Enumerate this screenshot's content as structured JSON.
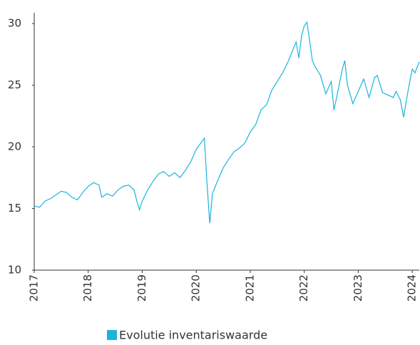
{
  "chart_data": {
    "type": "line",
    "x": [
      2017.0,
      2017.1,
      2017.2,
      2017.3,
      2017.4,
      2017.5,
      2017.6,
      2017.7,
      2017.8,
      2017.9,
      2018.0,
      2018.1,
      2018.2,
      2018.25,
      2018.35,
      2018.45,
      2018.55,
      2018.65,
      2018.75,
      2018.85,
      2018.9,
      2018.95,
      2019.0,
      2019.1,
      2019.2,
      2019.3,
      2019.4,
      2019.5,
      2019.6,
      2019.7,
      2019.8,
      2019.9,
      2020.0,
      2020.1,
      2020.15,
      2020.2,
      2020.25,
      2020.3,
      2020.4,
      2020.5,
      2020.6,
      2020.7,
      2020.8,
      2020.9,
      2021.0,
      2021.1,
      2021.2,
      2021.3,
      2021.4,
      2021.5,
      2021.6,
      2021.7,
      2021.8,
      2021.85,
      2021.9,
      2021.95,
      2022.0,
      2022.05,
      2022.1,
      2022.15,
      2022.2,
      2022.3,
      2022.4,
      2022.5,
      2022.55,
      2022.6,
      2022.7,
      2022.75,
      2022.8,
      2022.9,
      2023.0,
      2023.1,
      2023.2,
      2023.3,
      2023.35,
      2023.45,
      2023.55,
      2023.65,
      2023.7,
      2023.78,
      2023.84,
      2023.9,
      2023.95,
      2024.0,
      2024.05,
      2024.13
    ],
    "series": [
      {
        "name": "Evolutie inventariswaarde",
        "color": "#1ab4dc",
        "values": [
          15.2,
          15.1,
          15.6,
          15.8,
          16.1,
          16.4,
          16.3,
          15.9,
          15.7,
          16.3,
          16.8,
          17.1,
          16.9,
          15.9,
          16.2,
          16.0,
          16.5,
          16.8,
          16.9,
          16.5,
          15.6,
          14.9,
          15.6,
          16.5,
          17.2,
          17.8,
          18.0,
          17.6,
          17.9,
          17.5,
          18.1,
          18.8,
          19.8,
          20.4,
          20.7,
          17.0,
          13.8,
          16.2,
          17.3,
          18.3,
          19.0,
          19.6,
          19.9,
          20.3,
          21.2,
          21.8,
          23.0,
          23.4,
          24.6,
          25.3,
          26.0,
          26.9,
          28.0,
          28.5,
          27.2,
          29.0,
          29.8,
          30.1,
          28.6,
          27.0,
          26.5,
          25.8,
          24.3,
          25.3,
          23.0,
          24.0,
          26.2,
          27.0,
          25.0,
          23.5,
          24.5,
          25.5,
          24.0,
          25.6,
          25.8,
          24.4,
          24.2,
          24.0,
          24.5,
          23.8,
          22.4,
          24.0,
          25.2,
          26.3,
          26.0,
          26.9
        ]
      }
    ],
    "xlim": [
      2017,
      2024.13
    ],
    "xticks": [
      2017,
      2018,
      2019,
      2020,
      2021,
      2022,
      2023,
      2024
    ],
    "ylim": [
      10,
      30
    ],
    "yticks": [
      10,
      15,
      20,
      25,
      30
    ]
  }
}
